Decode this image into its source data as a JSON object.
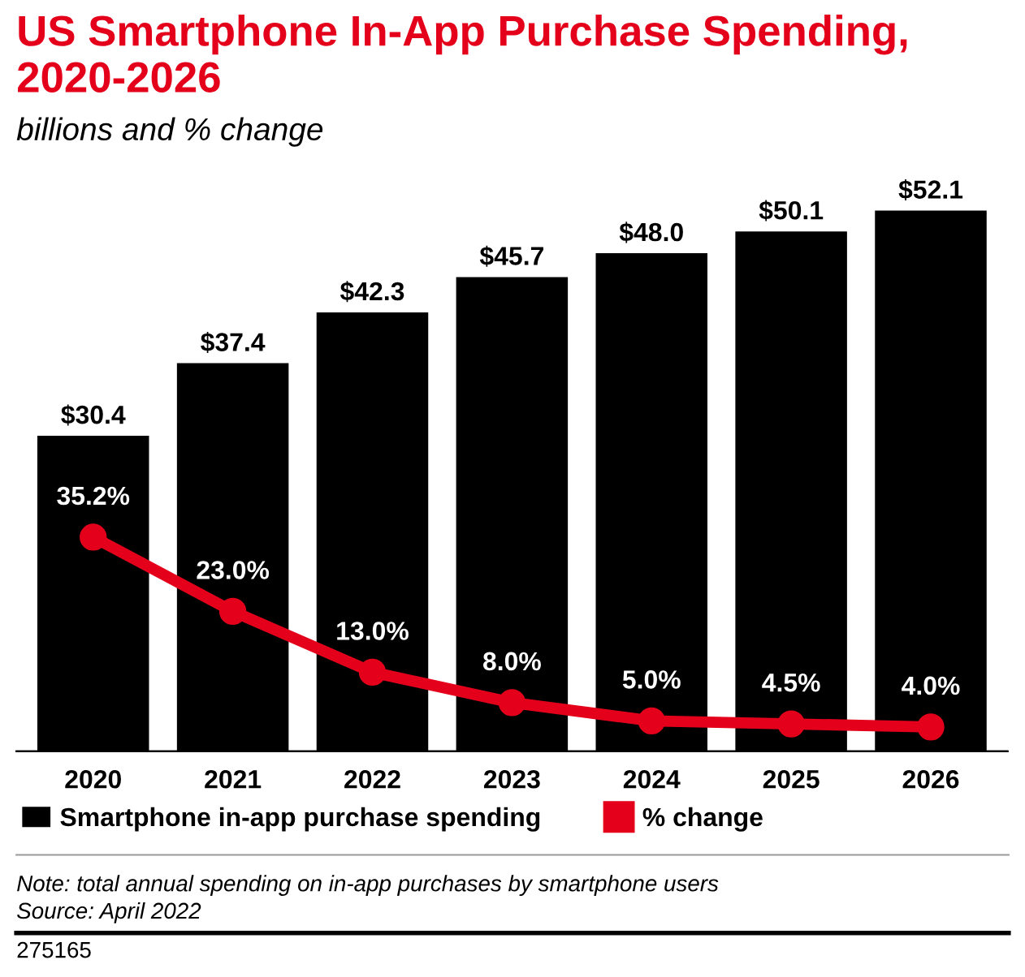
{
  "chart_data": {
    "type": "bar",
    "title": "US Smartphone In-App Purchase Spending, 2020-2026",
    "subtitle": "billions and % change",
    "categories": [
      "2020",
      "2021",
      "2022",
      "2023",
      "2024",
      "2025",
      "2026"
    ],
    "series": [
      {
        "name": "Smartphone in-app purchase spending",
        "color": "#000000",
        "values": [
          30.4,
          37.4,
          42.3,
          45.7,
          48.0,
          50.1,
          52.1
        ],
        "value_labels": [
          "$30.4",
          "$37.4",
          "$42.3",
          "$45.7",
          "$48.0",
          "$50.1",
          "$52.1"
        ]
      },
      {
        "name": "% change",
        "type": "line",
        "axis": "y2",
        "color": "#e4001b",
        "values": [
          35.2,
          23.0,
          13.0,
          8.0,
          5.0,
          4.5,
          4.0
        ],
        "value_labels": [
          "35.2%",
          "23.0%",
          "13.0%",
          "8.0%",
          "5.0%",
          "4.5%",
          "4.0%"
        ]
      }
    ],
    "legend": "bottom",
    "marker": "circle",
    "grid": false,
    "annotations": [
      "Note: total annual spending on in-app purchases by smartphone users",
      "Source: April 2022",
      "275165"
    ]
  }
}
